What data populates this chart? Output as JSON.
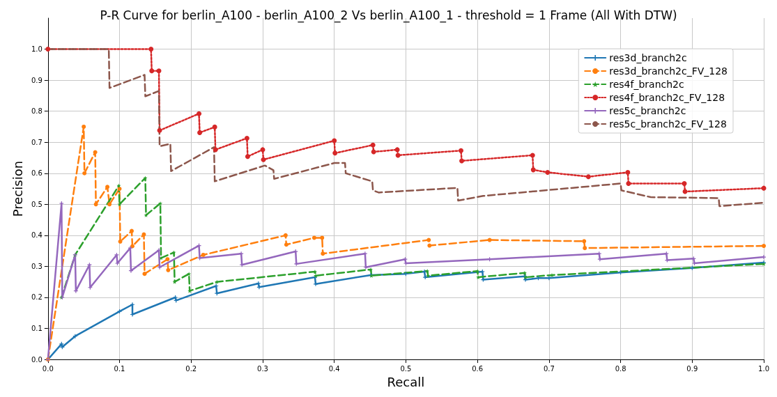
{
  "chart_data": {
    "type": "line",
    "title": "P-R Curve for berlin_A100 - berlin_A100_2 Vs berlin_A100_1 - threshold = 1 Frame (All With DTW)",
    "xlabel": "Recall",
    "ylabel": "Precision",
    "xlim": [
      0,
      1
    ],
    "ylim": [
      0,
      1.1
    ],
    "xticks": [
      {
        "value": 0,
        "label": "0.0"
      },
      0.1,
      0.2,
      0.3,
      0.4,
      0.5,
      0.6,
      0.7,
      0.8,
      0.9,
      {
        "value": 1,
        "label": "1.0"
      }
    ],
    "yticks": [
      {
        "value": 0,
        "label": "0.0"
      },
      0.1,
      0.2,
      0.3,
      0.4,
      0.5,
      0.6,
      0.7,
      0.8,
      0.9,
      {
        "value": 1,
        "label": "1.0"
      }
    ],
    "grid": true,
    "legend": "top right",
    "series": [
      {
        "name": "res3d_branch2c",
        "color": "#1f77b4",
        "line_style": "solid",
        "marker": "cross",
        "x": [
          0,
          0.019,
          0.02,
          0.038,
          0.1,
          0.118,
          0.118,
          0.178,
          0.179,
          0.235,
          0.236,
          0.294,
          0.295,
          0.373,
          0.374,
          0.451,
          0.5,
          0.526,
          0.527,
          0.607,
          0.608,
          0.666,
          0.667,
          0.685,
          0.7,
          0.8,
          0.9,
          1.0
        ],
        "values": [
          0,
          0.05,
          0.04,
          0.075,
          0.155,
          0.177,
          0.145,
          0.2,
          0.19,
          0.237,
          0.213,
          0.245,
          0.233,
          0.265,
          0.243,
          0.272,
          0.276,
          0.283,
          0.265,
          0.283,
          0.257,
          0.268,
          0.257,
          0.262,
          0.262,
          0.28,
          0.295,
          0.312
        ]
      },
      {
        "name": "res3d_branch2c_FV_128",
        "color": "#ff7f0e",
        "line_style": "dashed",
        "marker": "circle",
        "x": [
          0,
          0.05,
          0.051,
          0.066,
          0.067,
          0.083,
          0.086,
          0.1,
          0.101,
          0.117,
          0.118,
          0.134,
          0.135,
          0.167,
          0.168,
          0.217,
          0.332,
          0.333,
          0.372,
          0.383,
          0.384,
          0.532,
          0.533,
          0.617,
          0.749,
          0.75,
          1.0
        ],
        "values": [
          0,
          0.75,
          0.6,
          0.668,
          0.5,
          0.556,
          0.5,
          0.55,
          0.38,
          0.414,
          0.365,
          0.403,
          0.276,
          0.323,
          0.288,
          0.337,
          0.4,
          0.37,
          0.392,
          0.392,
          0.341,
          0.385,
          0.367,
          0.385,
          0.381,
          0.359,
          0.366
        ]
      },
      {
        "name": "res4f_branch2c",
        "color": "#2ca02c",
        "line_style": "dashed",
        "marker": "star",
        "x": [
          0.019,
          0.038,
          0.099,
          0.1,
          0.136,
          0.137,
          0.157,
          0.158,
          0.176,
          0.177,
          0.197,
          0.198,
          0.236,
          0.373,
          0.374,
          0.451,
          0.452,
          0.53,
          0.531,
          0.6,
          0.601,
          0.666,
          0.667,
          0.704,
          1.0
        ],
        "values": [
          0.2,
          0.337,
          0.56,
          0.5,
          0.585,
          0.465,
          0.503,
          0.327,
          0.345,
          0.25,
          0.276,
          0.221,
          0.25,
          0.283,
          0.27,
          0.29,
          0.27,
          0.285,
          0.27,
          0.285,
          0.265,
          0.279,
          0.265,
          0.272,
          0.308
        ]
      },
      {
        "name": "res4f_branch2c_FV_128",
        "color": "#d62728",
        "line_style": "dotted",
        "marker": "circle",
        "x": [
          0,
          0.144,
          0.145,
          0.155,
          0.156,
          0.211,
          0.212,
          0.233,
          0.234,
          0.278,
          0.279,
          0.3,
          0.301,
          0.4,
          0.401,
          0.454,
          0.455,
          0.488,
          0.489,
          0.577,
          0.578,
          0.677,
          0.678,
          0.698,
          0.755,
          0.81,
          0.811,
          0.889,
          0.89,
          1.0
        ],
        "values": [
          1.0,
          1.0,
          0.93,
          0.93,
          0.738,
          0.792,
          0.731,
          0.749,
          0.676,
          0.713,
          0.654,
          0.676,
          0.644,
          0.705,
          0.665,
          0.691,
          0.669,
          0.676,
          0.658,
          0.673,
          0.64,
          0.658,
          0.611,
          0.603,
          0.589,
          0.603,
          0.567,
          0.567,
          0.541,
          0.552
        ]
      },
      {
        "name": "res5c_branch2c",
        "color": "#9467bd",
        "line_style": "solid",
        "marker": "cross",
        "x": [
          0,
          0.019,
          0.02,
          0.038,
          0.039,
          0.058,
          0.059,
          0.096,
          0.097,
          0.115,
          0.116,
          0.155,
          0.156,
          0.211,
          0.212,
          0.27,
          0.271,
          0.346,
          0.347,
          0.443,
          0.444,
          0.499,
          0.5,
          0.617,
          0.77,
          0.771,
          0.864,
          0.865,
          0.902,
          0.903,
          1.0
        ],
        "values": [
          0,
          0.503,
          0.2,
          0.337,
          0.221,
          0.305,
          0.232,
          0.337,
          0.31,
          0.359,
          0.286,
          0.352,
          0.297,
          0.367,
          0.327,
          0.341,
          0.305,
          0.348,
          0.308,
          0.341,
          0.297,
          0.323,
          0.31,
          0.323,
          0.341,
          0.323,
          0.341,
          0.32,
          0.325,
          0.31,
          0.33
        ]
      },
      {
        "name": "res5c_branch2c_FV_128",
        "color": "#8c564b",
        "line_style": "dashed",
        "marker": "none",
        "x": [
          0,
          0.085,
          0.086,
          0.135,
          0.136,
          0.155,
          0.156,
          0.171,
          0.172,
          0.232,
          0.233,
          0.303,
          0.315,
          0.316,
          0.4,
          0.415,
          0.416,
          0.453,
          0.454,
          0.462,
          0.572,
          0.573,
          0.608,
          0.8,
          0.801,
          0.842,
          0.937,
          0.938,
          1.0
        ],
        "values": [
          1.0,
          1.0,
          0.875,
          0.917,
          0.848,
          0.865,
          0.687,
          0.695,
          0.607,
          0.684,
          0.574,
          0.625,
          0.61,
          0.582,
          0.633,
          0.633,
          0.6,
          0.574,
          0.545,
          0.538,
          0.553,
          0.512,
          0.527,
          0.567,
          0.545,
          0.523,
          0.52,
          0.494,
          0.505
        ]
      }
    ]
  }
}
